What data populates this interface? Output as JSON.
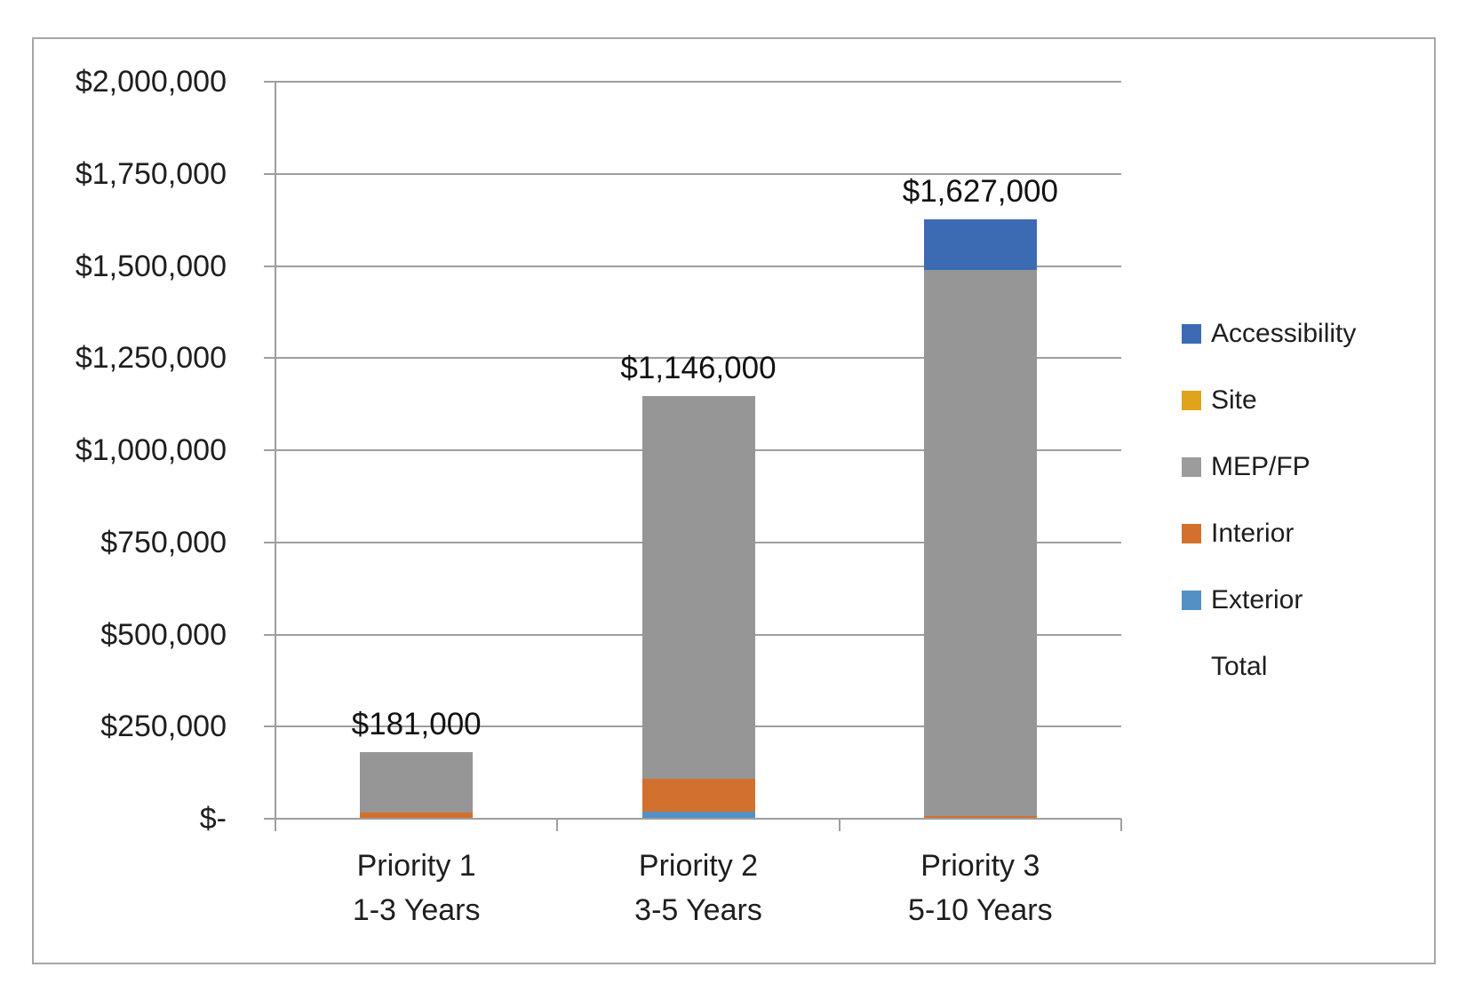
{
  "chart_data": {
    "type": "bar",
    "stacked": true,
    "categories": [
      {
        "line1": "Priority 1",
        "line2": "1-3 Years"
      },
      {
        "line1": "Priority 2",
        "line2": "3-5 Years"
      },
      {
        "line1": "Priority 3",
        "line2": "5-10 Years"
      }
    ],
    "series": [
      {
        "name": "Exterior",
        "color": "#5590C5",
        "values": [
          0,
          20000,
          0
        ]
      },
      {
        "name": "Interior",
        "color": "#D2712D",
        "values": [
          16000,
          89000,
          7000
        ]
      },
      {
        "name": "MEP/FP",
        "color": "#969696",
        "values": [
          165000,
          1037000,
          1481000
        ]
      },
      {
        "name": "Site",
        "color": "#DFA31C",
        "values": [
          0,
          0,
          0
        ]
      },
      {
        "name": "Accessibility",
        "color": "#3D6BB3",
        "values": [
          0,
          0,
          139000
        ]
      }
    ],
    "totals": [
      181000,
      1146000,
      1627000
    ],
    "total_labels": [
      "$181,000",
      "$1,146,000",
      "$1,627,000"
    ],
    "y_axis": {
      "min": 0,
      "max": 2000000,
      "step": 250000,
      "tick_labels": [
        "$-",
        "$250,000",
        "$500,000",
        "$750,000",
        "$1,000,000",
        "$1,250,000",
        "$1,500,000",
        "$1,750,000",
        "$2,000,000"
      ]
    },
    "xlabel": "",
    "ylabel": "",
    "title": "",
    "grid": true,
    "legend_position": "right",
    "legend": [
      {
        "label": "Accessibility",
        "color": "#3D6BB3",
        "swatch": true
      },
      {
        "label": "Site",
        "color": "#DFA31C",
        "swatch": true
      },
      {
        "label": "MEP/FP",
        "color": "#9C9C9C",
        "swatch": true
      },
      {
        "label": "Interior",
        "color": "#D2712D",
        "swatch": true
      },
      {
        "label": "Exterior",
        "color": "#5590C5",
        "swatch": true
      },
      {
        "label": "Total",
        "color": "",
        "swatch": false
      }
    ],
    "colors": {
      "gridline": "#9e9e9e",
      "axis": "#9e9e9e",
      "frame_border": "#a6a6a6",
      "text": "#1e1e1e"
    }
  }
}
